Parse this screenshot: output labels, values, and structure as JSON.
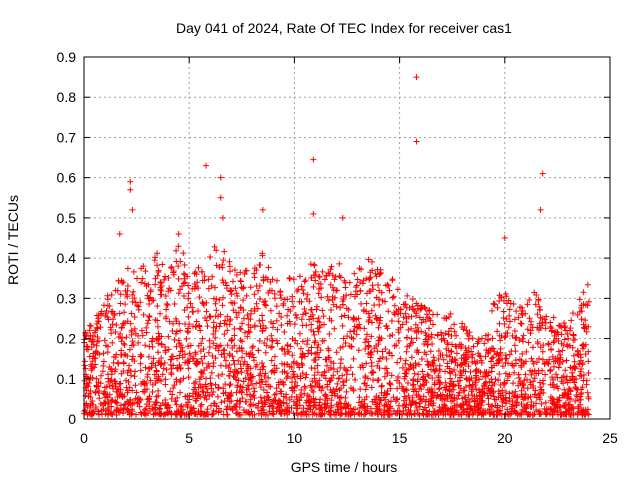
{
  "chart_data": {
    "type": "scatter",
    "title": "Day 041 of 2024, Rate Of TEC Index for receiver cas1",
    "xlabel": "GPS time / hours",
    "ylabel": "ROTI / TECUs",
    "xlim": [
      0,
      25
    ],
    "ylim": [
      0,
      0.9
    ],
    "xticks": [
      "0",
      "5",
      "10",
      "15",
      "20",
      "25"
    ],
    "yticks": [
      "0",
      "0.1",
      "0.2",
      "0.3",
      "0.4",
      "0.5",
      "0.6",
      "0.7",
      "0.8",
      "0.9"
    ],
    "grid": true,
    "marker": "+",
    "color": "#ff0000",
    "envelope": {
      "x": [
        0,
        0.5,
        1,
        1.5,
        2,
        2.5,
        3,
        3.5,
        4,
        4.5,
        5,
        5.5,
        6,
        6.5,
        7,
        7.5,
        8,
        8.5,
        9,
        9.5,
        10,
        10.5,
        11,
        11.5,
        12,
        12.5,
        13,
        13.5,
        14,
        14.5,
        15,
        15.5,
        16,
        16.5,
        17,
        17.5,
        18,
        18.5,
        19,
        19.5,
        20,
        20.5,
        21,
        21.5,
        22,
        22.5,
        23,
        23.5,
        24
      ],
      "y": [
        0.22,
        0.25,
        0.3,
        0.33,
        0.38,
        0.4,
        0.37,
        0.42,
        0.36,
        0.45,
        0.37,
        0.4,
        0.42,
        0.44,
        0.4,
        0.37,
        0.38,
        0.42,
        0.35,
        0.34,
        0.37,
        0.38,
        0.4,
        0.36,
        0.42,
        0.34,
        0.38,
        0.4,
        0.38,
        0.36,
        0.33,
        0.3,
        0.32,
        0.28,
        0.25,
        0.27,
        0.24,
        0.22,
        0.2,
        0.3,
        0.32,
        0.28,
        0.3,
        0.32,
        0.26,
        0.25,
        0.24,
        0.3,
        0.35
      ]
    },
    "outliers": [
      {
        "x": 15.8,
        "y": 0.85
      },
      {
        "x": 15.8,
        "y": 0.69
      },
      {
        "x": 5.8,
        "y": 0.63
      },
      {
        "x": 10.9,
        "y": 0.645
      },
      {
        "x": 21.8,
        "y": 0.61
      },
      {
        "x": 2.2,
        "y": 0.59
      },
      {
        "x": 6.5,
        "y": 0.6
      },
      {
        "x": 2.2,
        "y": 0.57
      },
      {
        "x": 6.5,
        "y": 0.55
      },
      {
        "x": 2.3,
        "y": 0.52
      },
      {
        "x": 21.7,
        "y": 0.52
      },
      {
        "x": 10.9,
        "y": 0.51
      },
      {
        "x": 12.3,
        "y": 0.5
      },
      {
        "x": 8.5,
        "y": 0.52
      },
      {
        "x": 20.0,
        "y": 0.45
      },
      {
        "x": 4.5,
        "y": 0.46
      },
      {
        "x": 1.7,
        "y": 0.46
      },
      {
        "x": 6.6,
        "y": 0.5
      }
    ]
  }
}
